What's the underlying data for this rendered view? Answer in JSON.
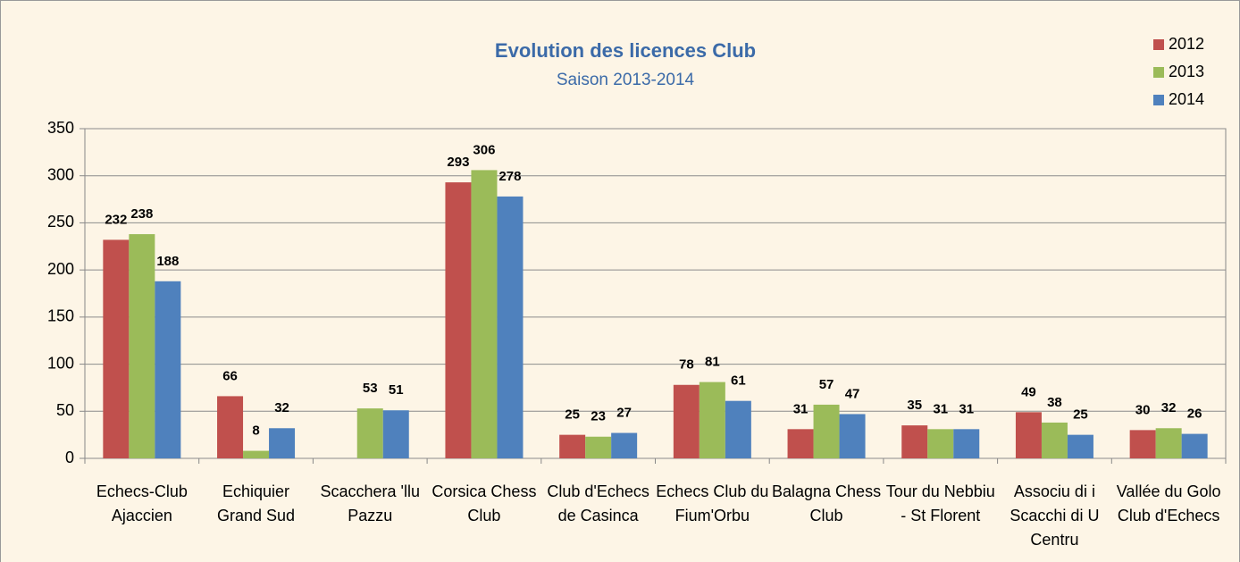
{
  "chart_data": {
    "type": "bar",
    "title": "Evolution des licences Club",
    "subtitle": "Saison 2013-2014",
    "categories": [
      "Echecs-Club Ajaccien",
      "Echiquier Grand Sud",
      "Scacchera 'llu Pazzu",
      "Corsica Chess Club",
      "Club d'Echecs de Casinca",
      "Echecs Club du Fium'Orbu",
      "Balagna Chess Club",
      "Tour du Nebbiu - St Florent",
      "Associu di i Scacchi di U Centru",
      "Vallée du Golo Club d'Echecs"
    ],
    "series": [
      {
        "name": "2012",
        "color": "#c0504d",
        "values": [
          232,
          66,
          null,
          293,
          25,
          78,
          31,
          35,
          49,
          30
        ]
      },
      {
        "name": "2013",
        "color": "#9bbb59",
        "values": [
          238,
          8,
          53,
          306,
          23,
          81,
          57,
          31,
          38,
          32
        ]
      },
      {
        "name": "2014",
        "color": "#4f81bd",
        "values": [
          188,
          32,
          51,
          278,
          27,
          61,
          47,
          31,
          25,
          26
        ]
      }
    ],
    "ylim": [
      0,
      350
    ],
    "yticks": [
      0,
      50,
      100,
      150,
      200,
      250,
      300,
      350
    ],
    "grid": true,
    "legend": "top-right"
  }
}
